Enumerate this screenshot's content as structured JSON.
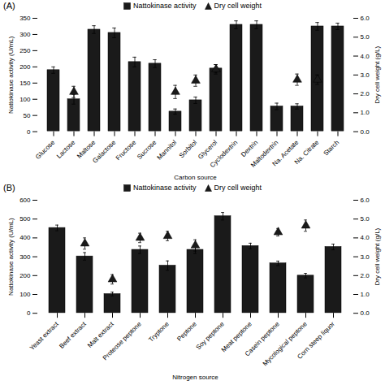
{
  "chart_data": [
    {
      "type": "bar",
      "title": "(A)",
      "xlabel": "Carbon source",
      "ylabel": "Nattokinase activity (U/mL)",
      "y2label": "Dry cell weight (g/L)",
      "categories": [
        "Glucose",
        "Lactose",
        "Maltose",
        "Galactose",
        "Fructose",
        "Sucrose",
        "Mannitol",
        "Sorbitol",
        "Glycerol",
        "Cyclodextrin",
        "Dextrin",
        "Maltodextrin",
        "Na. Acetate",
        "Na. Citrate",
        "Starch"
      ],
      "series": [
        {
          "name": "Nattokinase activity",
          "type": "bar",
          "color": "#1a1a1a",
          "values": [
            190,
            100,
            315,
            305,
            215,
            210,
            62,
            97,
            195,
            330,
            330,
            78,
            78,
            325,
            325
          ],
          "errors": [
            10,
            15,
            12,
            15,
            15,
            12,
            8,
            10,
            12,
            12,
            12,
            10,
            8,
            12,
            10
          ]
        },
        {
          "name": "Dry cell weight",
          "type": "scatter",
          "axis": "y2",
          "marker": "triangle",
          "color": "#1a1a1a",
          "values": [
            null,
            2.1,
            null,
            null,
            null,
            null,
            2.1,
            2.7,
            3.3,
            null,
            null,
            null,
            2.75,
            2.75,
            null
          ],
          "errors": [
            null,
            0.3,
            null,
            null,
            null,
            null,
            0.35,
            0.3,
            0.25,
            null,
            null,
            null,
            0.3,
            0.25,
            null
          ]
        }
      ],
      "ylim": [
        0,
        350
      ],
      "yticks": [
        0,
        50,
        100,
        150,
        200,
        250,
        300,
        350
      ],
      "y2lim": [
        0,
        6
      ],
      "y2ticks": [
        0,
        1,
        2,
        3,
        4,
        5,
        6
      ],
      "legend": "top",
      "grid": false
    },
    {
      "type": "bar",
      "title": "(B)",
      "xlabel": "Nitrogen source",
      "ylabel": "Nattokinase activity (U/mL)",
      "y2label": "Dry cell weight (g/L)",
      "categories": [
        "Yeast extract",
        "Beef extract",
        "Malt extract",
        "Proteose peptone",
        "Tryptone",
        "Peptone",
        "Soy peptone",
        "Meat peptone",
        "Casein peptone",
        "Mycological peptone",
        "Corn steep liquor"
      ],
      "series": [
        {
          "name": "Nattokinase activity",
          "type": "bar",
          "color": "#1a1a1a",
          "values": [
            453,
            302,
            102,
            337,
            253,
            337,
            515,
            357,
            265,
            200,
            352
          ],
          "errors": [
            15,
            20,
            10,
            20,
            25,
            20,
            20,
            15,
            12,
            12,
            15
          ]
        },
        {
          "name": "Dry cell weight",
          "type": "scatter",
          "axis": "y2",
          "marker": "triangle",
          "color": "#1a1a1a",
          "values": [
            null,
            3.7,
            1.8,
            4.0,
            4.1,
            3.6,
            null,
            null,
            4.3,
            4.65,
            null
          ],
          "errors": [
            null,
            0.3,
            0.25,
            0.25,
            0.25,
            0.3,
            null,
            null,
            0.2,
            0.3,
            null
          ]
        }
      ],
      "ylim": [
        0,
        600
      ],
      "yticks": [
        0,
        100,
        200,
        300,
        400,
        500,
        600
      ],
      "y2lim": [
        0,
        6
      ],
      "y2ticks": [
        0,
        1,
        2,
        3,
        4,
        5,
        6
      ],
      "legend": "top",
      "grid": false
    }
  ]
}
